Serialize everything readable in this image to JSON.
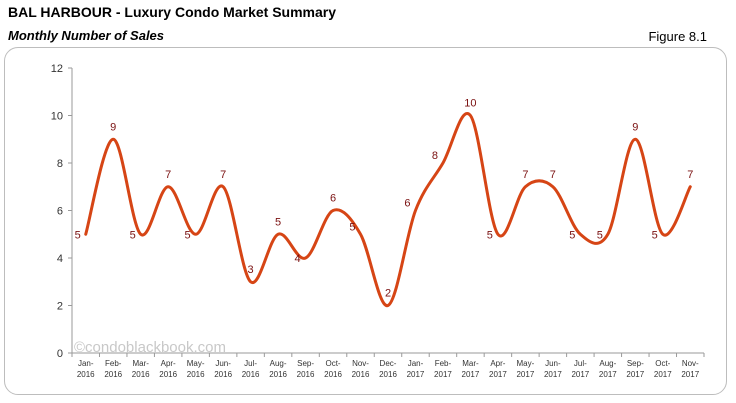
{
  "header": {
    "title": "BAL HARBOUR - Luxury Condo Market Summary",
    "subtitle": "Monthly Number of Sales",
    "figure": "Figure 8.1"
  },
  "watermark": "©condoblackbook.com",
  "chart_data": {
    "type": "line",
    "title": "",
    "xlabel": "",
    "ylabel": "",
    "ylim": [
      0,
      12
    ],
    "yticks": [
      0,
      2,
      4,
      6,
      8,
      10,
      12
    ],
    "grid": false,
    "smooth": true,
    "line_color": "#d64515",
    "label_color": "#7a1010",
    "categories": [
      [
        "Jan-",
        "2016"
      ],
      [
        "Feb-",
        "2016"
      ],
      [
        "Mar-",
        "2016"
      ],
      [
        "Apr-",
        "2016"
      ],
      [
        "May-",
        "2016"
      ],
      [
        "Jun-",
        "2016"
      ],
      [
        "Jul-",
        "2016"
      ],
      [
        "Aug-",
        "2016"
      ],
      [
        "Sep-",
        "2016"
      ],
      [
        "Oct-",
        "2016"
      ],
      [
        "Nov-",
        "2016"
      ],
      [
        "Dec-",
        "2016"
      ],
      [
        "Jan-",
        "2017"
      ],
      [
        "Feb-",
        "2017"
      ],
      [
        "Mar-",
        "2017"
      ],
      [
        "Apr-",
        "2017"
      ],
      [
        "May-",
        "2017"
      ],
      [
        "Jun-",
        "2017"
      ],
      [
        "Jul-",
        "2017"
      ],
      [
        "Aug-",
        "2017"
      ],
      [
        "Sep-",
        "2017"
      ],
      [
        "Oct-",
        "2017"
      ],
      [
        "Nov-",
        "2017"
      ]
    ],
    "series": [
      {
        "values": [
          5,
          9,
          5,
          7,
          5,
          7,
          3,
          5,
          4,
          6,
          5,
          2,
          6,
          8,
          10,
          5,
          7,
          7,
          5,
          5,
          9,
          5,
          7
        ]
      }
    ]
  }
}
